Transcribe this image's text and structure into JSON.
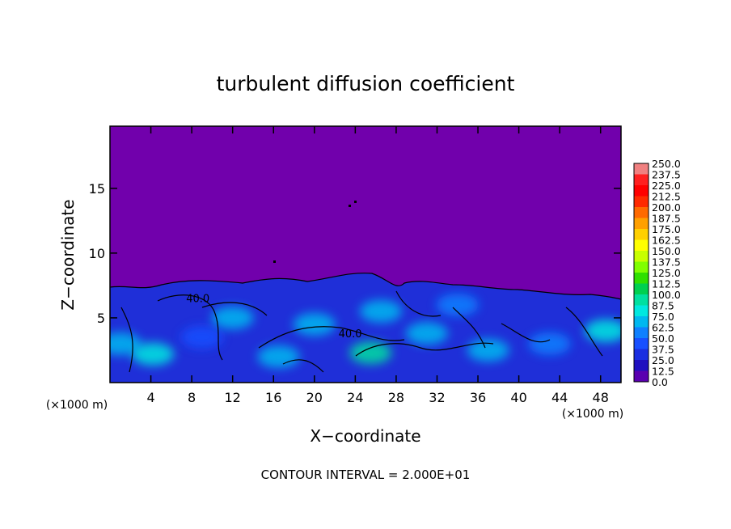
{
  "chart_data": {
    "type": "heatmap",
    "title": "turbulent diffusion coefficient",
    "xlabel": "X−coordinate",
    "ylabel": "Z−coordinate",
    "x_unit_left": "(×1000 m)",
    "x_unit_right": "(×1000 m)",
    "footer": "CONTOUR INTERVAL = 2.000E+01",
    "xlim": [
      0,
      50
    ],
    "ylim": [
      0,
      19.8
    ],
    "x_ticks": [
      4,
      8,
      12,
      16,
      20,
      24,
      28,
      32,
      36,
      40,
      44,
      48
    ],
    "y_ticks": [
      5,
      10,
      15
    ],
    "grid": false,
    "contour_labels": [
      {
        "x": 8.6,
        "z": 6.2,
        "text": "40.0"
      },
      {
        "x": 23.5,
        "z": 3.5,
        "text": "40.0"
      }
    ],
    "colorbar": {
      "levels": [
        "250.0",
        "237.5",
        "225.0",
        "212.5",
        "200.0",
        "187.5",
        "175.0",
        "162.5",
        "150.0",
        "137.5",
        "125.0",
        "112.5",
        "100.0",
        "87.5",
        "75.0",
        "62.5",
        "50.0",
        "37.5",
        "25.0",
        "12.5",
        "0.0"
      ],
      "colors": [
        "#f08080",
        "#ff2020",
        "#ff0000",
        "#ff2a00",
        "#ff6a00",
        "#ffa000",
        "#ffd000",
        "#ffff00",
        "#c8ff00",
        "#80ff00",
        "#30e000",
        "#00d050",
        "#00e0a0",
        "#00e8e0",
        "#00b8f0",
        "#1080ff",
        "#1850ff",
        "#1a2ee0",
        "#2010c0",
        "#5a00b0"
      ]
    },
    "field": {
      "background_value": 0.0,
      "background_color": "#7100ac",
      "turbulent_layer_top_km": 7.5,
      "patches": [
        {
          "x": 1.0,
          "z": 3.0,
          "value": 62.5
        },
        {
          "x": 4.2,
          "z": 2.2,
          "value": 75.0
        },
        {
          "x": 9.0,
          "z": 3.5,
          "value": 37.5
        },
        {
          "x": 12.0,
          "z": 5.0,
          "value": 62.5
        },
        {
          "x": 16.5,
          "z": 2.0,
          "value": 62.5
        },
        {
          "x": 20.0,
          "z": 4.5,
          "value": 62.5
        },
        {
          "x": 25.5,
          "z": 2.3,
          "value": 87.5
        },
        {
          "x": 26.5,
          "z": 5.5,
          "value": 62.5
        },
        {
          "x": 31.0,
          "z": 3.8,
          "value": 62.5
        },
        {
          "x": 34.0,
          "z": 6.0,
          "value": 50.0
        },
        {
          "x": 37.0,
          "z": 2.5,
          "value": 62.5
        },
        {
          "x": 43.0,
          "z": 3.0,
          "value": 50.0
        },
        {
          "x": 48.5,
          "z": 4.0,
          "value": 75.0
        }
      ]
    }
  }
}
